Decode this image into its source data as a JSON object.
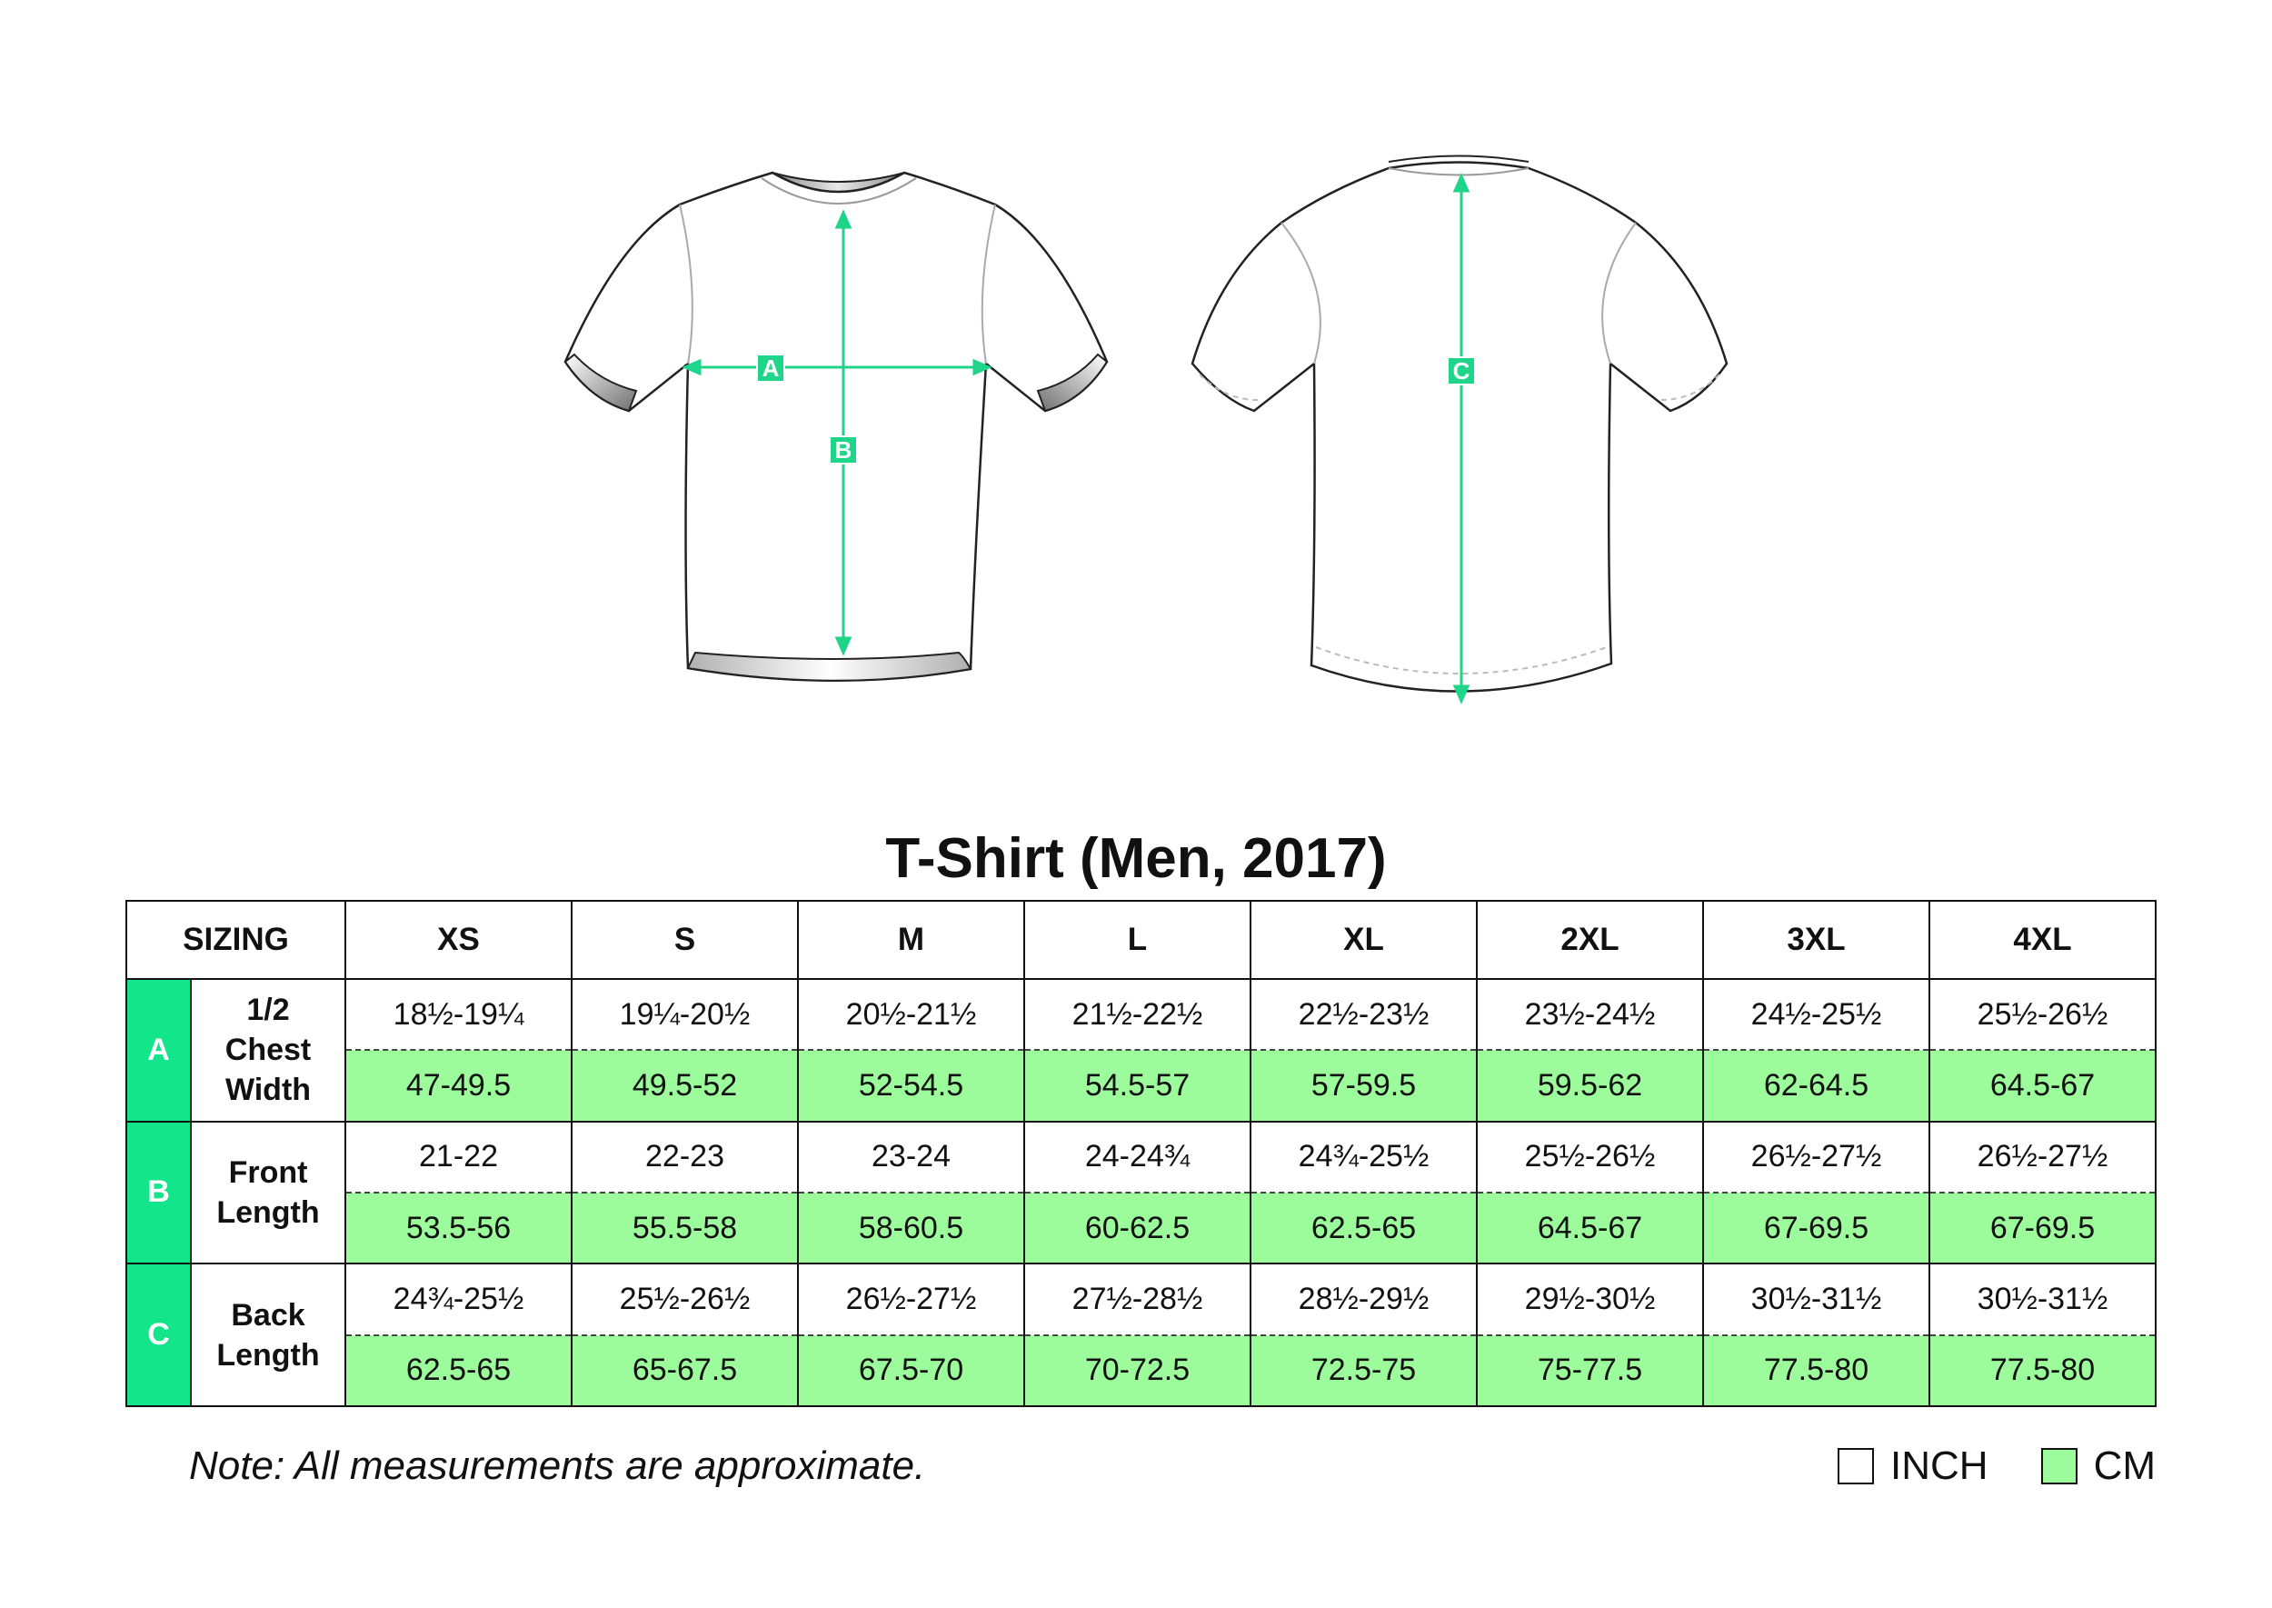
{
  "title": "T-Shirt (Men, 2017)",
  "colors": {
    "accent": "#13e68a",
    "cm_fill": "#9cfb9a",
    "inch_fill": "#ffffff"
  },
  "diagram": {
    "front_markers": [
      "A",
      "B"
    ],
    "back_markers": [
      "C"
    ]
  },
  "table": {
    "header_label": "SIZING",
    "sizes": [
      "XS",
      "S",
      "M",
      "L",
      "XL",
      "2XL",
      "3XL",
      "4XL"
    ],
    "rows": [
      {
        "letter": "A",
        "label_lines": [
          "1/2",
          "Chest",
          "Width"
        ],
        "inch": [
          "18½-19¼",
          "19¼-20½",
          "20½-21½",
          "21½-22½",
          "22½-23½",
          "23½-24½",
          "24½-25½",
          "25½-26½"
        ],
        "cm": [
          "47-49.5",
          "49.5-52",
          "52-54.5",
          "54.5-57",
          "57-59.5",
          "59.5-62",
          "62-64.5",
          "64.5-67"
        ]
      },
      {
        "letter": "B",
        "label_lines": [
          "Front",
          "Length"
        ],
        "inch": [
          "21-22",
          "22-23",
          "23-24",
          "24-24¾",
          "24¾-25½",
          "25½-26½",
          "26½-27½",
          "26½-27½"
        ],
        "cm": [
          "53.5-56",
          "55.5-58",
          "58-60.5",
          "60-62.5",
          "62.5-65",
          "64.5-67",
          "67-69.5",
          "67-69.5"
        ]
      },
      {
        "letter": "C",
        "label_lines": [
          "Back",
          "Length"
        ],
        "inch": [
          "24¾-25½",
          "25½-26½",
          "26½-27½",
          "27½-28½",
          "28½-29½",
          "29½-30½",
          "30½-31½",
          "30½-31½"
        ],
        "cm": [
          "62.5-65",
          "65-67.5",
          "67.5-70",
          "70-72.5",
          "72.5-75",
          "75-77.5",
          "77.5-80",
          "77.5-80"
        ]
      }
    ]
  },
  "note": "Note: All measurements are approximate.",
  "legend": {
    "inch_label": "INCH",
    "cm_label": "CM"
  }
}
